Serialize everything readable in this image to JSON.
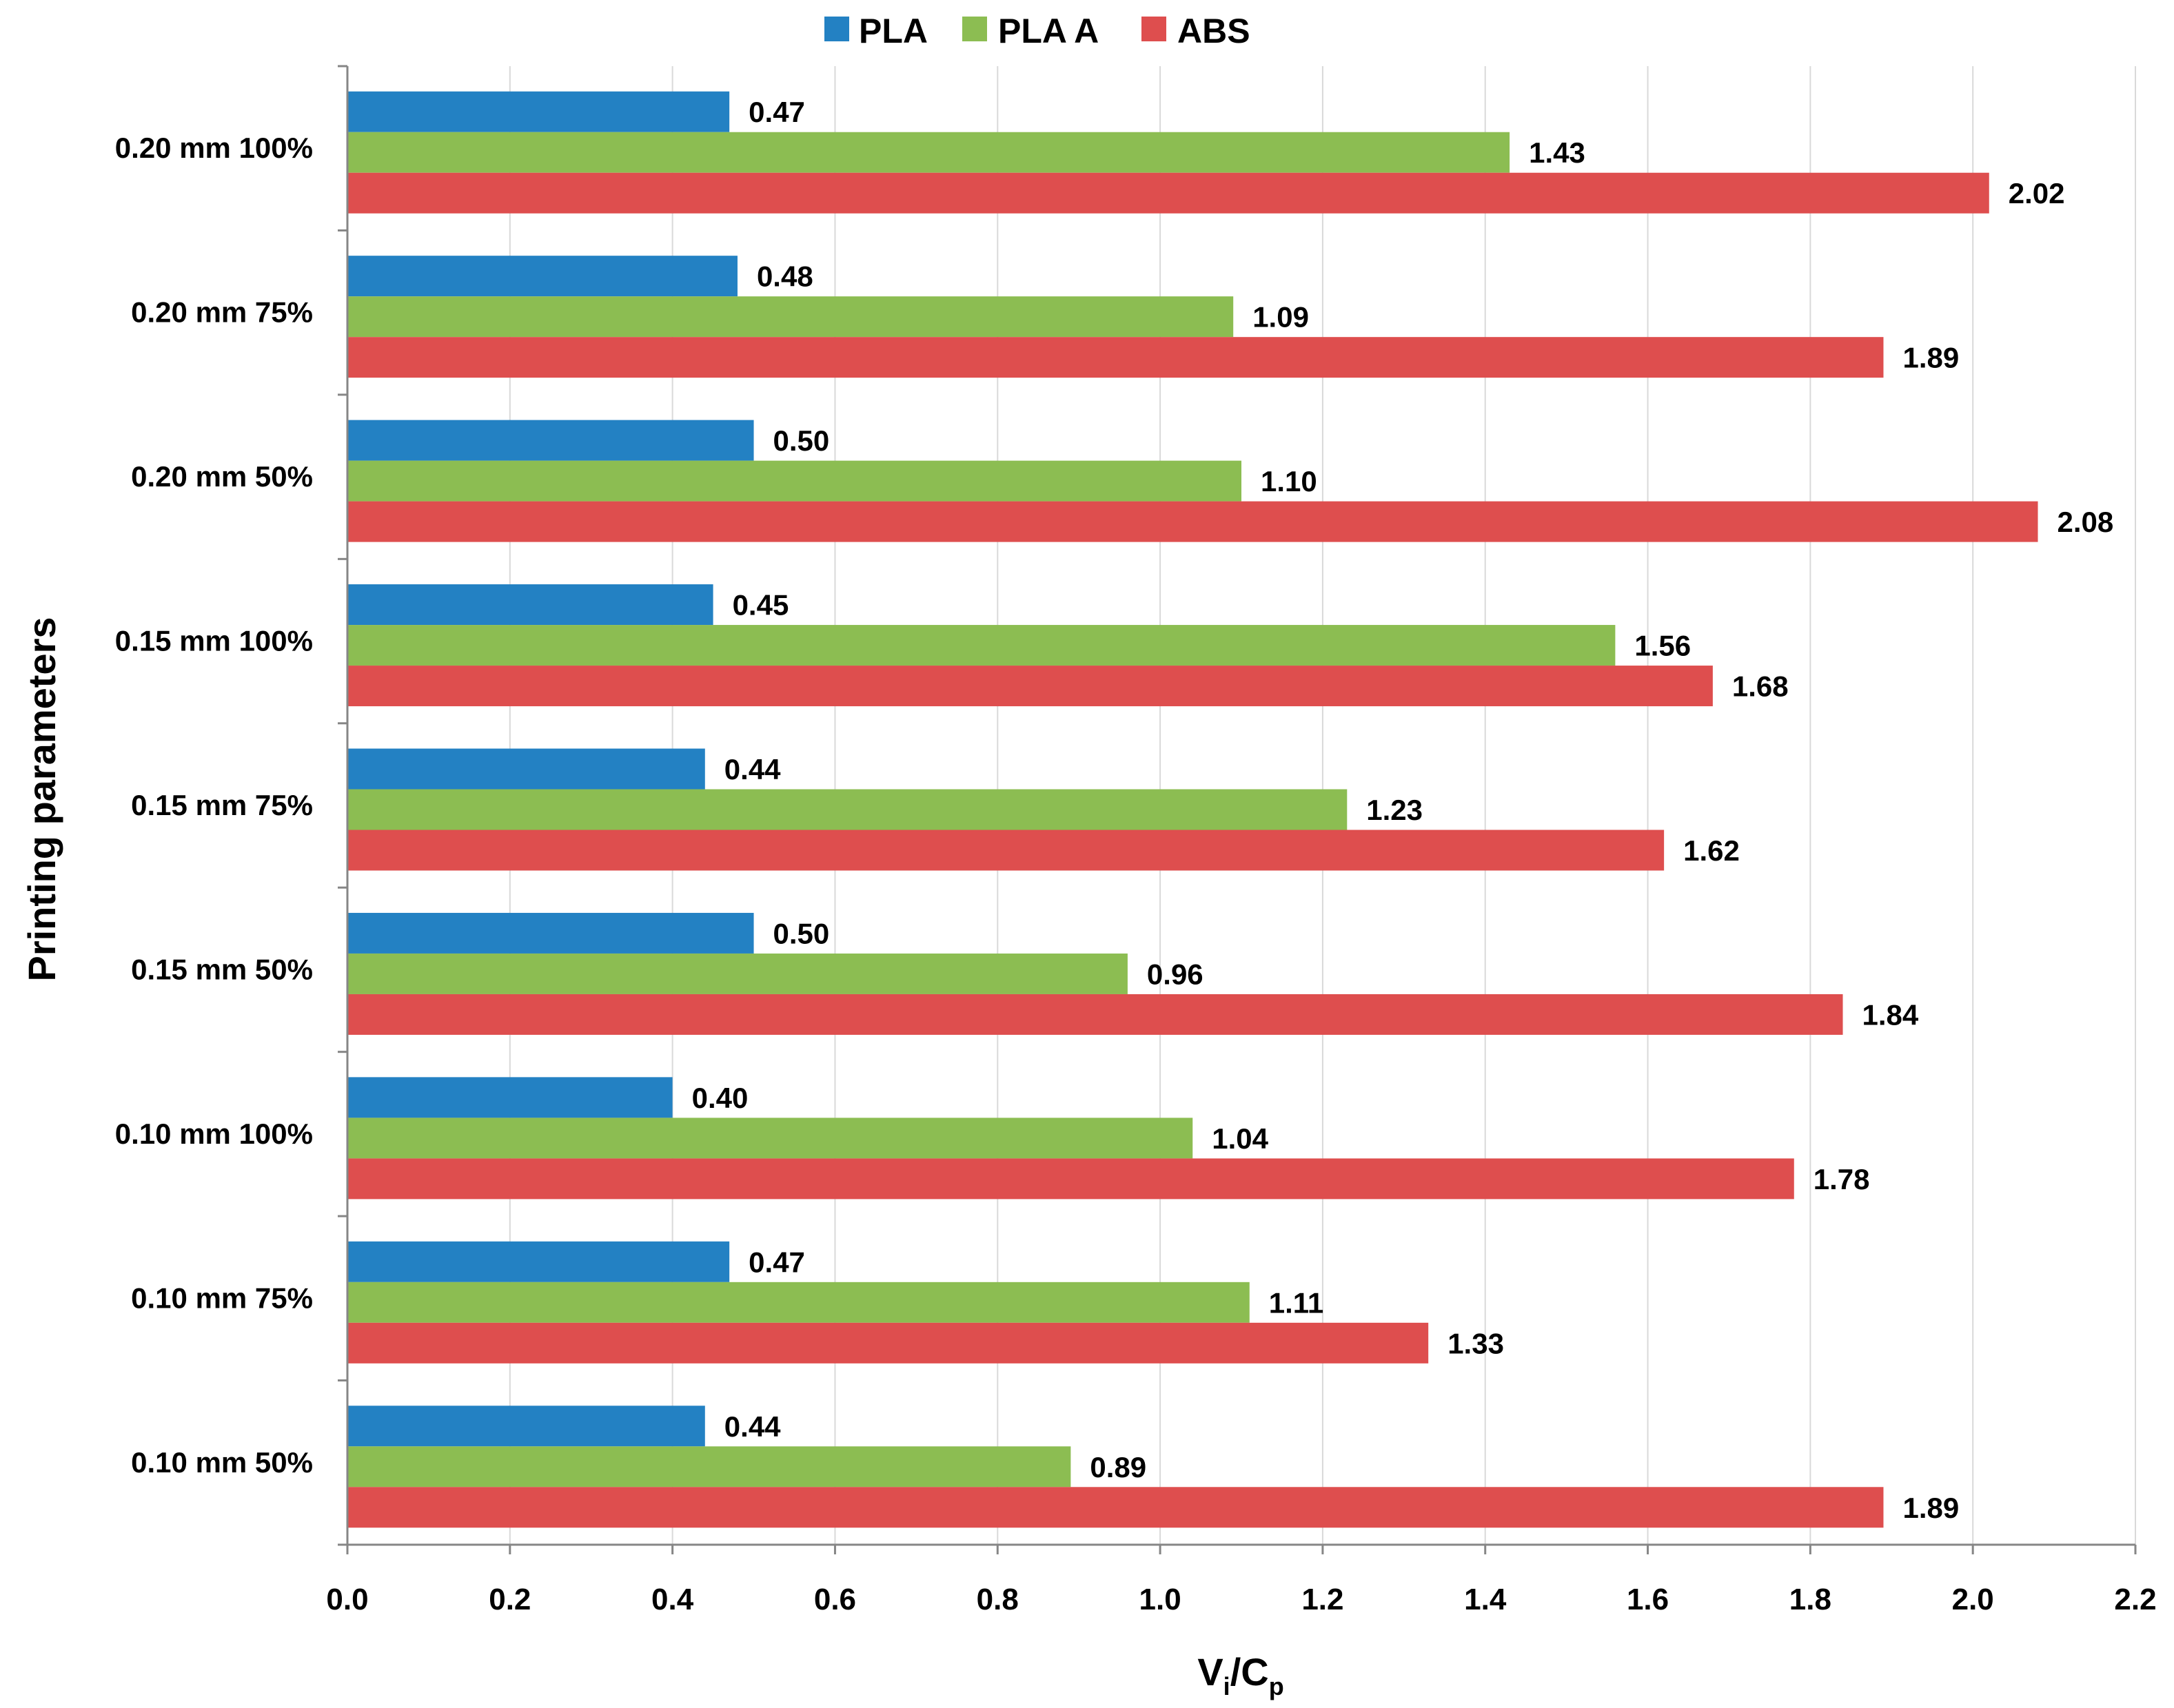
{
  "chart_data": {
    "type": "bar",
    "orientation": "horizontal",
    "categories": [
      "0.20 mm  100%",
      "0.20 mm 75%",
      "0.20 mm 50%",
      "0.15 mm 100%",
      "0.15 mm 75%",
      "0.15 mm  50%",
      "0.10 mm 100%",
      "0.10 mm 75%",
      "0.10 mm  50%"
    ],
    "series": [
      {
        "name": "PLA",
        "color": "#2381c3",
        "values": [
          0.47,
          0.48,
          0.5,
          0.45,
          0.44,
          0.5,
          0.4,
          0.47,
          0.44
        ],
        "labels": [
          "0.47",
          "0.48",
          "0.50",
          "0.45",
          "0.44",
          "0.50",
          "0.40",
          "0.47",
          "0.44"
        ]
      },
      {
        "name": "PLA A",
        "color": "#8cbd52",
        "values": [
          1.43,
          1.09,
          1.1,
          1.56,
          1.23,
          0.96,
          1.04,
          1.11,
          0.89
        ],
        "labels": [
          "1.43",
          "1.09",
          "1.10",
          "1.56",
          "1.23",
          "0.96",
          "1.04",
          "1.11",
          "0.89"
        ]
      },
      {
        "name": "ABS",
        "color": "#de4e4e",
        "values": [
          2.02,
          1.89,
          2.08,
          1.68,
          1.62,
          1.84,
          1.78,
          1.33,
          1.89
        ],
        "labels": [
          "2.02",
          "1.89",
          "2.08",
          "1.68",
          "1.62",
          "1.84",
          "1.78",
          "1.33",
          "1.89"
        ]
      }
    ],
    "xticks": [
      "0.0",
      "0.2",
      "0.4",
      "0.6",
      "0.8",
      "1.0",
      "1.2",
      "1.4",
      "1.6",
      "1.8",
      "2.0",
      "2.2"
    ],
    "xlim": [
      0,
      2.2
    ],
    "xlabel": {
      "main": "V",
      "sub1": "i",
      "sep": "/C",
      "sub2": "p"
    },
    "ylabel": "Printing parameters",
    "legend_position": "top-center",
    "grid": true
  }
}
